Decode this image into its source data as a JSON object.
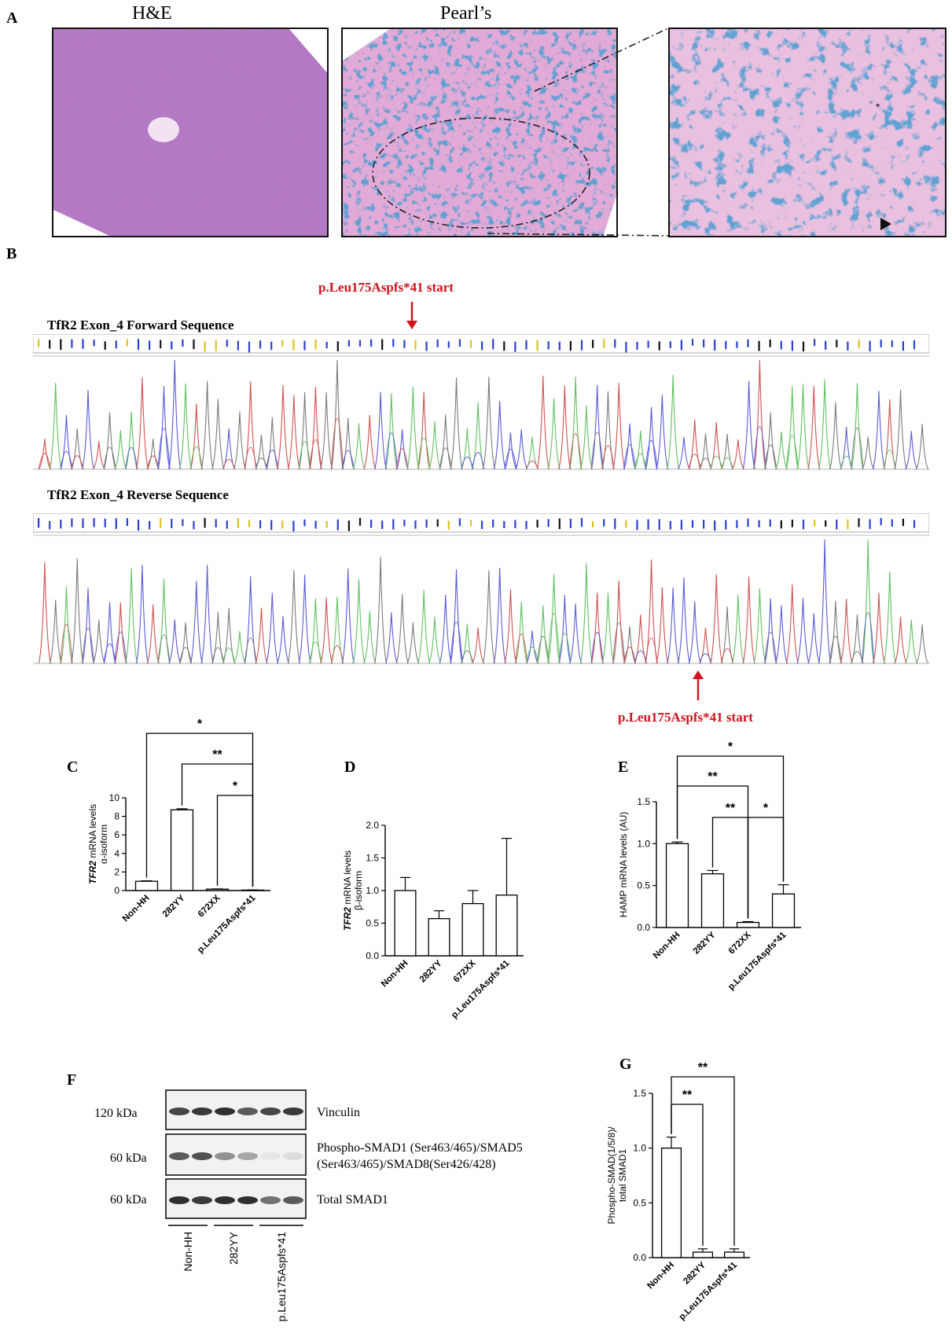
{
  "panel_a": {
    "letter": "A",
    "he_title": "H&E",
    "pearls_title": "Pearl’s"
  },
  "panel_b": {
    "letter": "B",
    "forward_title": "TfR2 Exon_4 Forward Sequence",
    "reverse_title": "TfR2 Exon_4 Reverse Sequence",
    "mutation_label_top": "p.Leu175Aspfs*41 start",
    "mutation_label_bottom": "p.Leu175Aspfs*41 start"
  },
  "panel_f": {
    "letter": "F",
    "blots": [
      {
        "kda": "120 kDa",
        "label_lines": [
          "Vinculin"
        ]
      },
      {
        "kda": "60 kDa",
        "label_lines": [
          "Phospho-SMAD1 (Ser463/465)/SMAD5",
          "(Ser463/465)/SMAD8(Ser426/428)"
        ]
      },
      {
        "kda": "60 kDa",
        "label_lines": [
          "Total SMAD1"
        ]
      }
    ],
    "groups": [
      "Non-HH",
      "282YY",
      "p.Leu175Aspfs*41"
    ]
  },
  "chart_data": [
    {
      "panel": "C",
      "type": "bar",
      "categories": [
        "Non-HH",
        "282YY",
        "672XX",
        "p.Leu175Aspfs*41"
      ],
      "values": [
        1.0,
        8.7,
        0.15,
        0.05
      ],
      "errors": [
        0.05,
        0.12,
        0.03,
        0.02
      ],
      "ylabel_italic": "TFR2",
      "ylabel_line1": "mRNA levels",
      "ylabel_line2": "α-isoform",
      "ylim": [
        0,
        10
      ],
      "yticks": [
        "0",
        "2",
        "4",
        "6",
        "8",
        "10"
      ],
      "significance": [
        {
          "from": 0,
          "to": 3,
          "label": "*"
        },
        {
          "from": 1,
          "to": 3,
          "label": "**"
        },
        {
          "from": 2,
          "to": 3,
          "label": "*"
        }
      ]
    },
    {
      "panel": "D",
      "type": "bar",
      "categories": [
        "Non-HH",
        "282YY",
        "672XX",
        "p.Leu175Aspfs*41"
      ],
      "values": [
        1.0,
        0.57,
        0.8,
        0.93
      ],
      "errors": [
        0.2,
        0.12,
        0.2,
        0.87
      ],
      "ylabel_italic": "TFR2",
      "ylabel_line1": "mRNA levels",
      "ylabel_line2": "β-isoform",
      "ylim": [
        0,
        2.0
      ],
      "yticks": [
        "0.0",
        "0.5",
        "1.0",
        "1.5",
        "2.0"
      ],
      "significance": []
    },
    {
      "panel": "E",
      "type": "bar",
      "categories": [
        "Non-HH",
        "282YY",
        "672XX",
        "p.Leu175Aspfs*41"
      ],
      "values": [
        1.0,
        0.64,
        0.06,
        0.4
      ],
      "errors": [
        0.02,
        0.04,
        0.01,
        0.11
      ],
      "ylabel_italic": "",
      "ylabel_line1": "HAMP mRNA levels (AU)",
      "ylabel_line2": "",
      "ylim": [
        0,
        1.5
      ],
      "yticks": [
        "0.0",
        "0.5",
        "1.0",
        "1.5"
      ],
      "significance": [
        {
          "from": 0,
          "to": 3,
          "label": "*"
        },
        {
          "from": 0,
          "to": 2,
          "label": "**"
        },
        {
          "from": 1,
          "to": 2,
          "label": "**"
        },
        {
          "from": 2,
          "to": 3,
          "label": "*"
        }
      ]
    },
    {
      "panel": "G",
      "type": "bar",
      "categories": [
        "Non-HH",
        "282YY",
        "p.Leu175Aspfs*41"
      ],
      "values": [
        1.0,
        0.05,
        0.05
      ],
      "errors": [
        0.1,
        0.03,
        0.03
      ],
      "ylabel_italic": "",
      "ylabel_line1": "Phospho-SMAD(1/5/8)/",
      "ylabel_line2": "total SMAD1",
      "ylim": [
        0,
        1.5
      ],
      "yticks": [
        "0.0",
        "0.5",
        "1.0",
        "1.5"
      ],
      "significance": [
        {
          "from": 0,
          "to": 1,
          "label": "**"
        },
        {
          "from": 0,
          "to": 2,
          "label": "**"
        }
      ]
    }
  ]
}
